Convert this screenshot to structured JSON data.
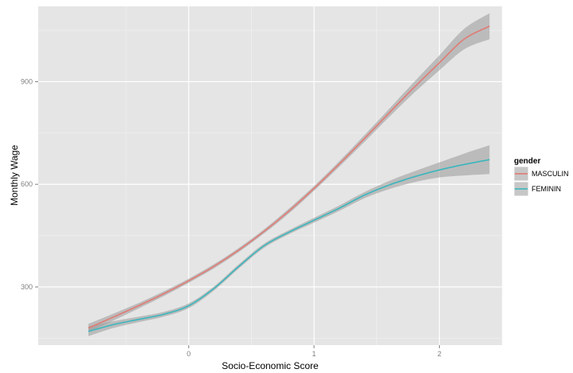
{
  "chart_data": {
    "type": "line",
    "title": "",
    "xlabel": "Socio-Economic Score",
    "ylabel": "Monthly Wage",
    "xlim": [
      -1.2,
      2.5
    ],
    "ylim": [
      130,
      1120
    ],
    "x_ticks": [
      0,
      1,
      2
    ],
    "x_tick_labels": [
      "0",
      "1",
      "2"
    ],
    "y_ticks": [
      300,
      600,
      900
    ],
    "y_tick_labels": [
      "300",
      "600",
      "900"
    ],
    "grid": true,
    "legend": {
      "title": "gender",
      "position": "right"
    },
    "series": [
      {
        "name": "MASCULIN",
        "color": "#e07b74",
        "x": [
          -0.8,
          -0.6,
          -0.4,
          -0.2,
          0.0,
          0.2,
          0.4,
          0.6,
          0.8,
          1.0,
          1.2,
          1.4,
          1.6,
          1.8,
          2.0,
          2.2,
          2.4
        ],
        "y": [
          180,
          212,
          245,
          280,
          318,
          360,
          408,
          462,
          522,
          588,
          659,
          733,
          809,
          884,
          955,
          1025,
          1062
        ],
        "ci_width": [
          12,
          10,
          8,
          7,
          6,
          6,
          6,
          6,
          7,
          7,
          8,
          10,
          12,
          16,
          22,
          30,
          38
        ]
      },
      {
        "name": "FEMININ",
        "color": "#3ab6bd",
        "x": [
          -0.8,
          -0.6,
          -0.4,
          -0.2,
          0.0,
          0.2,
          0.4,
          0.6,
          0.8,
          1.0,
          1.2,
          1.4,
          1.6,
          1.8,
          2.0,
          2.2,
          2.4
        ],
        "y": [
          170,
          190,
          205,
          220,
          245,
          295,
          360,
          420,
          460,
          495,
          530,
          568,
          598,
          622,
          642,
          658,
          672
        ],
        "ci_width": [
          14,
          10,
          8,
          7,
          7,
          6,
          6,
          6,
          6,
          7,
          8,
          9,
          12,
          16,
          22,
          32,
          42
        ]
      }
    ]
  }
}
